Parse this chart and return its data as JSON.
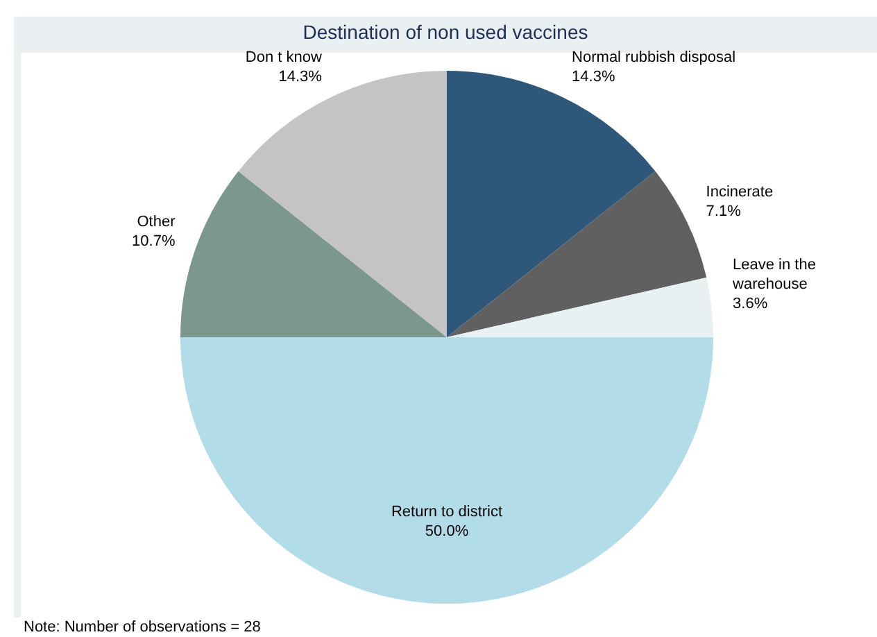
{
  "chart_data": {
    "type": "pie",
    "title": "Destination of non used vaccines",
    "categories": [
      "Normal rubbish disposal",
      "Incinerate",
      "Leave in the warehouse",
      "Return to district",
      "Other",
      "Don t know"
    ],
    "values": [
      14.3,
      7.1,
      3.6,
      50.0,
      10.7,
      14.3
    ],
    "value_labels": [
      "14.3%",
      "7.1%",
      "3.6%",
      "50.0%",
      "10.7%",
      "14.3%"
    ],
    "colors": [
      "#2f5779",
      "#606060",
      "#e8f0f2",
      "#b3dce9",
      "#7c978c",
      "#c4c4c4"
    ],
    "legend": false,
    "annotations": [
      "Note: Number of observations = 28"
    ]
  }
}
